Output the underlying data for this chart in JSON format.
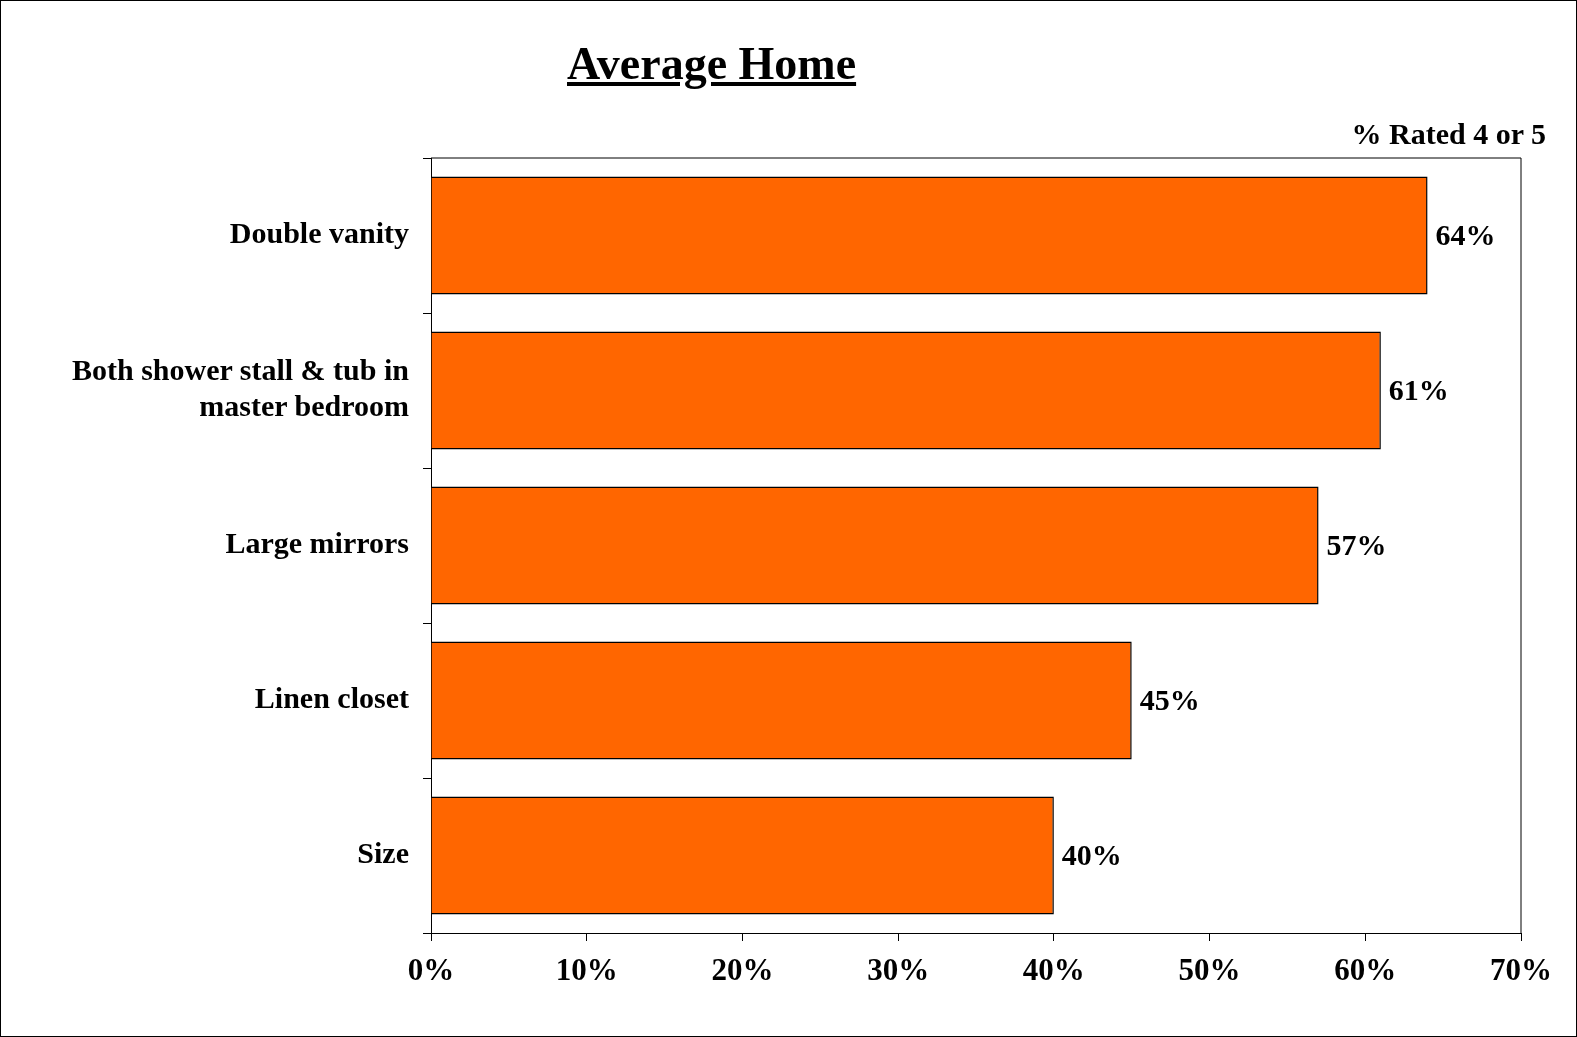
{
  "chart_data": {
    "type": "bar",
    "orientation": "horizontal",
    "title": "Average Home",
    "annotations": [
      "% Rated 4 or 5"
    ],
    "categories": [
      "Double vanity",
      "Both shower stall & tub in master bedroom",
      "Large mirrors",
      "Linen closet",
      "Size"
    ],
    "values": [
      64,
      61,
      57,
      45,
      40
    ],
    "value_labels": [
      "64%",
      "61%",
      "57%",
      "45%",
      "40%"
    ],
    "color": "#ff6600",
    "xlim": [
      0,
      70
    ],
    "xticks": [
      {
        "value": 0,
        "label": "0%"
      },
      {
        "value": 10,
        "label": "10%"
      },
      {
        "value": 20,
        "label": "20%"
      },
      {
        "value": 30,
        "label": "30%"
      },
      {
        "value": 40,
        "label": "40%"
      },
      {
        "value": 50,
        "label": "50%"
      },
      {
        "value": 60,
        "label": "60%"
      },
      {
        "value": 70,
        "label": "70%"
      }
    ],
    "grid": false,
    "legend": false
  }
}
